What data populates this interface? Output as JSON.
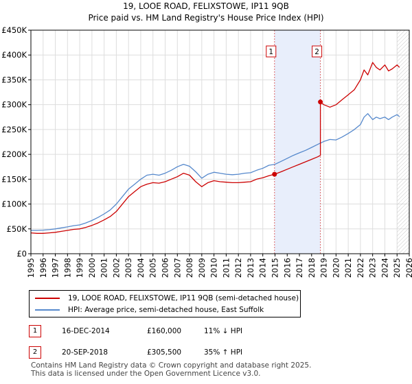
{
  "chart_data": {
    "type": "line",
    "title": "19, LOOE ROAD, FELIXSTOWE, IP11 9QB",
    "subtitle": "Price paid vs. HM Land Registry's House Price Index (HPI)",
    "xlabel": "",
    "ylabel": "",
    "xlim": [
      1995,
      2026
    ],
    "ylim": [
      0,
      450000
    ],
    "grid": true,
    "x_ticks": [
      "1995",
      "1996",
      "1997",
      "1998",
      "1999",
      "2000",
      "2001",
      "2002",
      "2003",
      "2004",
      "2005",
      "2006",
      "2007",
      "2008",
      "2009",
      "2010",
      "2011",
      "2012",
      "2013",
      "2014",
      "2015",
      "2016",
      "2017",
      "2018",
      "2019",
      "2020",
      "2021",
      "2022",
      "2023",
      "2024",
      "2025",
      "2026"
    ],
    "y_ticks": [
      "£0",
      "£50K",
      "£100K",
      "£150K",
      "£200K",
      "£250K",
      "£300K",
      "£350K",
      "£400K",
      "£450K"
    ],
    "y_tick_values": [
      0,
      50000,
      100000,
      150000,
      200000,
      250000,
      300000,
      350000,
      400000,
      450000
    ],
    "shaded_region": [
      2014.96,
      2018.72
    ],
    "hatched_after": 2025.0,
    "series": [
      {
        "name": "19, LOOE ROAD, FELIXSTOWE, IP11 9QB (semi-detached house)",
        "color": "#cc0000",
        "x": [
          1995.0,
          1995.5,
          1996.0,
          1996.5,
          1997.0,
          1997.5,
          1998.0,
          1998.5,
          1999.0,
          1999.5,
          2000.0,
          2000.5,
          2001.0,
          2001.5,
          2002.0,
          2002.5,
          2003.0,
          2003.5,
          2004.0,
          2004.5,
          2005.0,
          2005.5,
          2006.0,
          2006.5,
          2007.0,
          2007.5,
          2008.0,
          2008.5,
          2009.0,
          2009.5,
          2010.0,
          2010.5,
          2011.0,
          2011.5,
          2012.0,
          2012.5,
          2013.0,
          2013.5,
          2014.0,
          2014.5,
          2014.96,
          2015.5,
          2016.0,
          2016.5,
          2017.0,
          2017.5,
          2018.0,
          2018.5,
          2018.72,
          2018.72,
          2019.0,
          2019.5,
          2020.0,
          2020.5,
          2021.0,
          2021.5,
          2022.0,
          2022.3,
          2022.6,
          2023.0,
          2023.3,
          2023.6,
          2024.0,
          2024.3,
          2024.6,
          2025.0,
          2025.2
        ],
        "values": [
          42000,
          41000,
          41000,
          42000,
          43000,
          45000,
          47000,
          49000,
          50000,
          53000,
          57000,
          62000,
          68000,
          75000,
          85000,
          100000,
          115000,
          125000,
          135000,
          140000,
          143000,
          142000,
          145000,
          150000,
          155000,
          162000,
          158000,
          145000,
          135000,
          143000,
          147000,
          145000,
          144000,
          143000,
          143000,
          144000,
          145000,
          150000,
          153000,
          157000,
          160000,
          165000,
          170000,
          175000,
          180000,
          185000,
          190000,
          195000,
          198000,
          305500,
          300000,
          295000,
          300000,
          310000,
          320000,
          330000,
          350000,
          370000,
          360000,
          385000,
          375000,
          370000,
          380000,
          368000,
          372000,
          380000,
          375000
        ]
      },
      {
        "name": "HPI: Average price, semi-detached house, East Suffolk",
        "color": "#5588cc",
        "x": [
          1995.0,
          1995.5,
          1996.0,
          1996.5,
          1997.0,
          1997.5,
          1998.0,
          1998.5,
          1999.0,
          1999.5,
          2000.0,
          2000.5,
          2001.0,
          2001.5,
          2002.0,
          2002.5,
          2003.0,
          2003.5,
          2004.0,
          2004.5,
          2005.0,
          2005.5,
          2006.0,
          2006.5,
          2007.0,
          2007.5,
          2008.0,
          2008.5,
          2009.0,
          2009.5,
          2010.0,
          2010.5,
          2011.0,
          2011.5,
          2012.0,
          2012.5,
          2013.0,
          2013.5,
          2014.0,
          2014.5,
          2015.0,
          2015.5,
          2016.0,
          2016.5,
          2017.0,
          2017.5,
          2018.0,
          2018.5,
          2019.0,
          2019.5,
          2020.0,
          2020.5,
          2021.0,
          2021.5,
          2022.0,
          2022.3,
          2022.6,
          2023.0,
          2023.3,
          2023.6,
          2024.0,
          2024.3,
          2024.6,
          2025.0,
          2025.2
        ],
        "values": [
          47000,
          47000,
          47500,
          48500,
          50000,
          52000,
          54000,
          56500,
          58000,
          62000,
          67000,
          73000,
          80000,
          88000,
          100000,
          115000,
          130000,
          140000,
          150000,
          158000,
          160000,
          158000,
          162000,
          168000,
          175000,
          180000,
          176000,
          165000,
          152000,
          160000,
          164000,
          162000,
          160000,
          159000,
          160000,
          162000,
          163000,
          168000,
          172000,
          178000,
          180000,
          186000,
          192000,
          198000,
          203000,
          208000,
          214000,
          220000,
          226000,
          230000,
          229000,
          235000,
          242000,
          250000,
          260000,
          275000,
          282000,
          270000,
          275000,
          272000,
          275000,
          270000,
          275000,
          280000,
          276000
        ]
      }
    ],
    "sales": [
      {
        "num": "1",
        "date": "16-DEC-2014",
        "price": "£160,000",
        "hpi": "11% ↓ HPI",
        "x": 2014.96,
        "y": 160000
      },
      {
        "num": "2",
        "date": "20-SEP-2018",
        "price": "£305,500",
        "hpi": "35% ↑ HPI",
        "x": 2018.72,
        "y": 305500
      }
    ]
  },
  "footer": {
    "line1": "Contains HM Land Registry data © Crown copyright and database right 2025.",
    "line2": "This data is licensed under the Open Government Licence v3.0."
  }
}
